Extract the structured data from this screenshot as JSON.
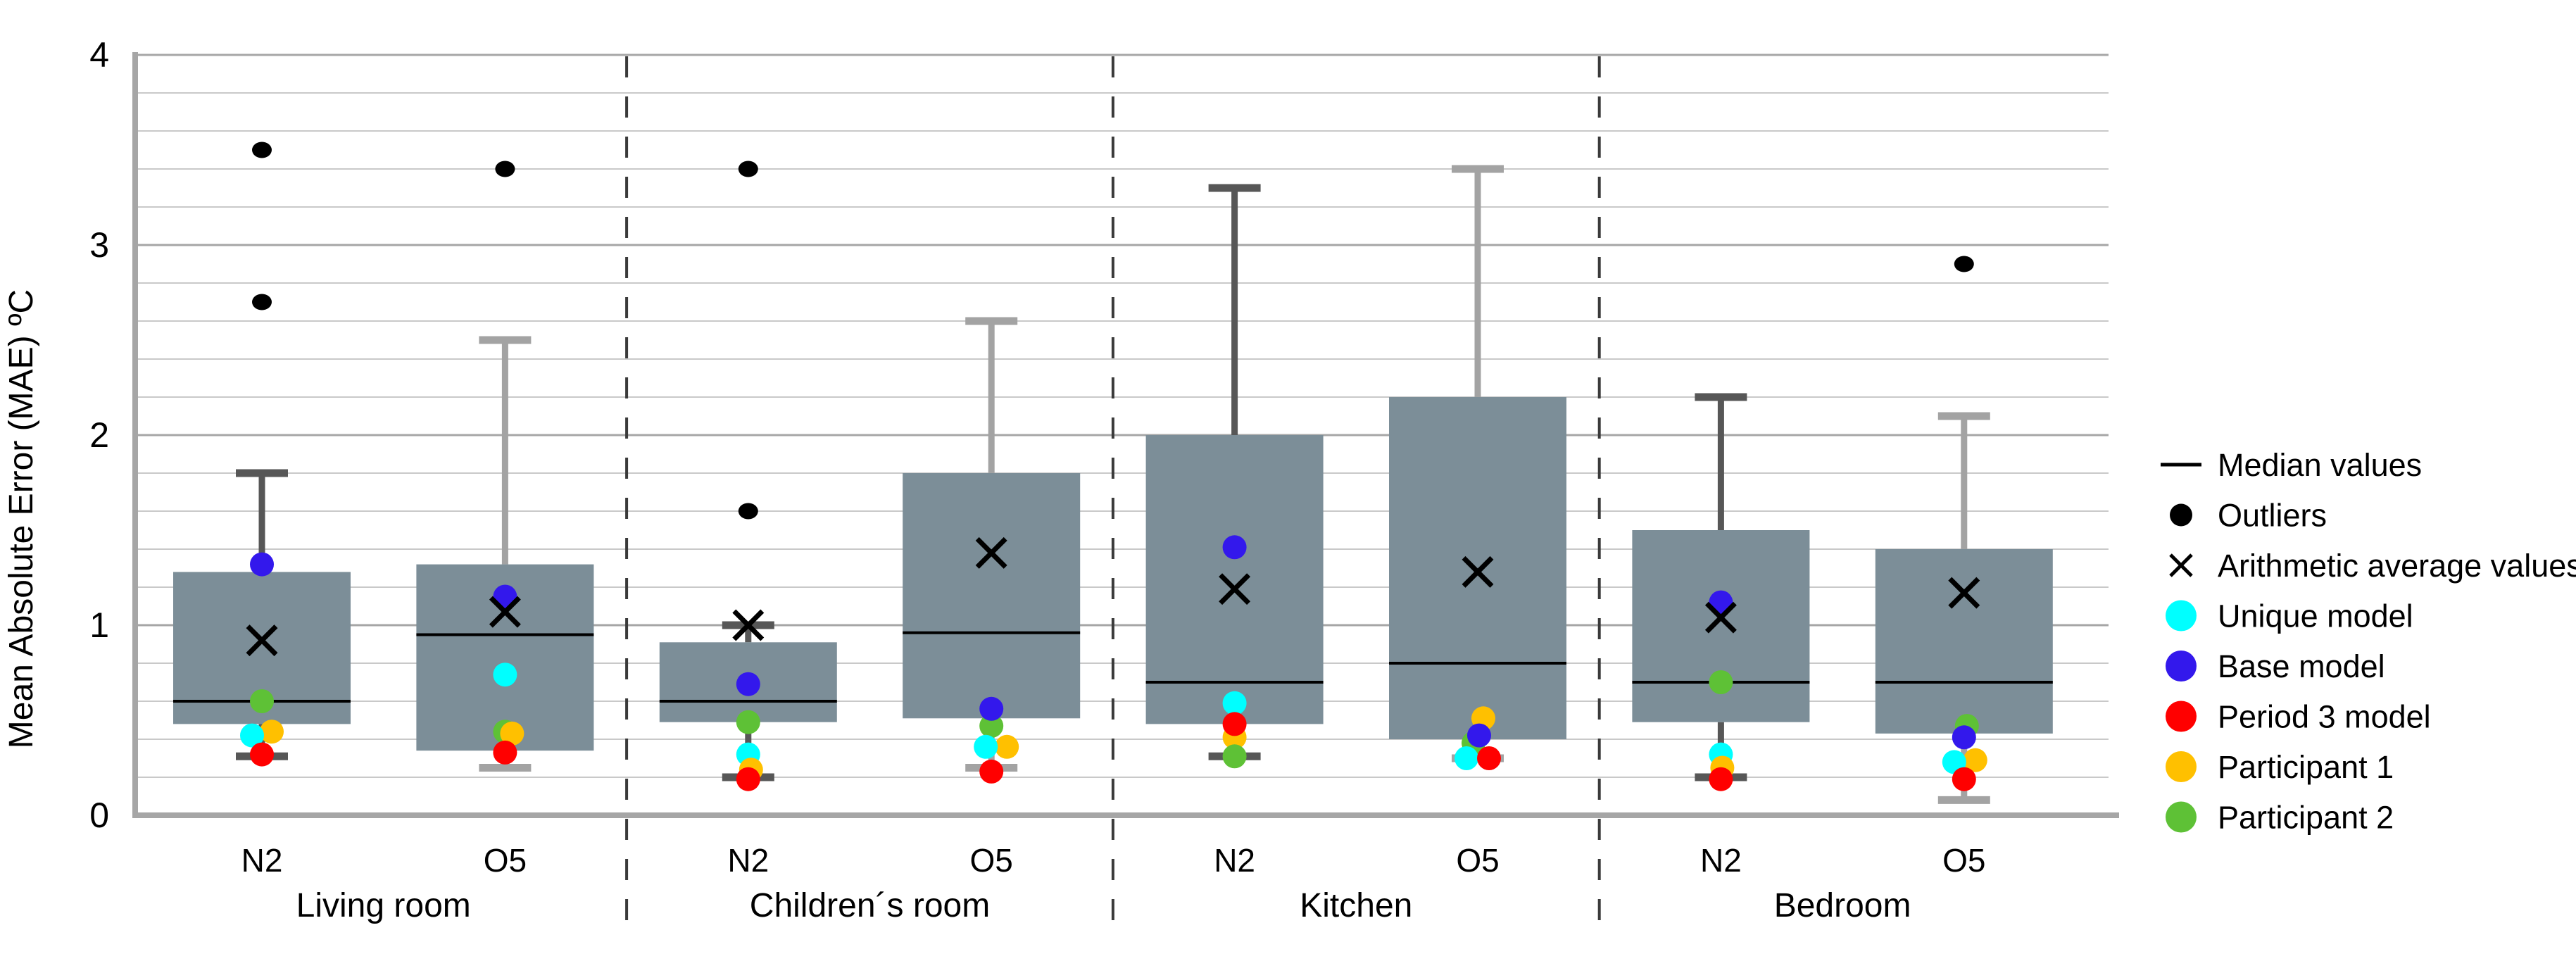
{
  "chart_data": {
    "type": "box",
    "ylabel": "Mean Absolute Error (MAE) ºC",
    "ylim": [
      0,
      4
    ],
    "ytick_labels": [
      "0",
      "1",
      "2",
      "3",
      "4"
    ],
    "grid_minor_step": 0.2,
    "grid_major_step": 1.0,
    "legend_position": "right",
    "colors": {
      "box_fill": "#7C8E98",
      "whisker_dark": "#575757",
      "whisker_light": "#A3A3A3",
      "median": "#000000",
      "mean_marker": "#000000",
      "outlier": "#000000",
      "grid_minor": "#C9C9C9",
      "grid_major": "#A6A6A6",
      "axis": "#A6A6A6",
      "separator": "#3A3A3A",
      "series": {
        "unique": "#00FFFF",
        "base": "#3318EC",
        "period3": "#FF0000",
        "participant1": "#FFC000",
        "participant2": "#5EC136"
      }
    },
    "groups": [
      {
        "room": "Living room",
        "boxes": [
          {
            "label": "N2",
            "whisker_shade": "dark",
            "q1": 0.48,
            "median": 0.6,
            "q3": 1.28,
            "mean": 0.92,
            "whisker_low": 0.31,
            "whisker_high": 1.8,
            "outliers": [
              2.7,
              3.5
            ],
            "points": [
              {
                "series": "participant2",
                "value": 0.6,
                "dx": 0
              },
              {
                "series": "participant1",
                "value": 0.44,
                "dx": 14
              },
              {
                "series": "unique",
                "value": 0.42,
                "dx": -14
              },
              {
                "series": "period3",
                "value": 0.32,
                "dx": 0
              },
              {
                "series": "base",
                "value": 1.32,
                "dx": 0
              }
            ]
          },
          {
            "label": "O5",
            "whisker_shade": "light",
            "q1": 0.34,
            "median": 0.95,
            "q3": 1.32,
            "mean": 1.07,
            "whisker_low": 0.25,
            "whisker_high": 2.5,
            "outliers": [
              3.4
            ],
            "points": [
              {
                "series": "unique",
                "value": 0.74,
                "dx": 0
              },
              {
                "series": "participant2",
                "value": 0.44,
                "dx": 0
              },
              {
                "series": "participant1",
                "value": 0.43,
                "dx": 10
              },
              {
                "series": "period3",
                "value": 0.33,
                "dx": 0
              },
              {
                "series": "base",
                "value": 1.15,
                "dx": 0
              }
            ]
          }
        ]
      },
      {
        "room": "Children´s room",
        "boxes": [
          {
            "label": "N2",
            "whisker_shade": "dark",
            "q1": 0.49,
            "median": 0.6,
            "q3": 0.91,
            "mean": 1.0,
            "whisker_low": 0.2,
            "whisker_high": 1.0,
            "outliers": [
              1.6,
              3.4
            ],
            "points": [
              {
                "series": "base",
                "value": 0.69,
                "dx": 0
              },
              {
                "series": "participant2",
                "value": 0.49,
                "dx": 0
              },
              {
                "series": "unique",
                "value": 0.32,
                "dx": 0
              },
              {
                "series": "participant1",
                "value": 0.24,
                "dx": 4
              },
              {
                "series": "period3",
                "value": 0.19,
                "dx": 0
              }
            ]
          },
          {
            "label": "O5",
            "whisker_shade": "light",
            "q1": 0.51,
            "median": 0.96,
            "q3": 1.8,
            "mean": 1.38,
            "whisker_low": 0.25,
            "whisker_high": 2.6,
            "outliers": [],
            "points": [
              {
                "series": "participant2",
                "value": 0.47,
                "dx": 0
              },
              {
                "series": "base",
                "value": 0.56,
                "dx": 0
              },
              {
                "series": "participant1",
                "value": 0.36,
                "dx": 22
              },
              {
                "series": "unique",
                "value": 0.36,
                "dx": -8
              },
              {
                "series": "period3",
                "value": 0.23,
                "dx": 0
              }
            ]
          }
        ]
      },
      {
        "room": "Kitchen",
        "boxes": [
          {
            "label": "N2",
            "whisker_shade": "dark",
            "q1": 0.48,
            "median": 0.7,
            "q3": 2.0,
            "mean": 1.19,
            "whisker_low": 0.31,
            "whisker_high": 3.3,
            "outliers": [],
            "points": [
              {
                "series": "unique",
                "value": 0.59,
                "dx": 0
              },
              {
                "series": "participant1",
                "value": 0.41,
                "dx": 0
              },
              {
                "series": "period3",
                "value": 0.48,
                "dx": 0
              },
              {
                "series": "participant2",
                "value": 0.31,
                "dx": 0
              },
              {
                "series": "base",
                "value": 1.41,
                "dx": 0
              }
            ]
          },
          {
            "label": "O5",
            "whisker_shade": "light",
            "q1": 0.4,
            "median": 0.8,
            "q3": 2.2,
            "mean": 1.28,
            "whisker_low": 0.3,
            "whisker_high": 3.4,
            "outliers": [],
            "points": [
              {
                "series": "participant1",
                "value": 0.51,
                "dx": 8
              },
              {
                "series": "participant2",
                "value": 0.38,
                "dx": -6
              },
              {
                "series": "base",
                "value": 0.42,
                "dx": 2
              },
              {
                "series": "unique",
                "value": 0.3,
                "dx": -16
              },
              {
                "series": "period3",
                "value": 0.3,
                "dx": 16
              }
            ]
          }
        ]
      },
      {
        "room": "Bedroom",
        "boxes": [
          {
            "label": "N2",
            "whisker_shade": "dark",
            "q1": 0.49,
            "median": 0.7,
            "q3": 1.5,
            "mean": 1.04,
            "whisker_low": 0.2,
            "whisker_high": 2.2,
            "outliers": [],
            "points": [
              {
                "series": "participant2",
                "value": 0.7,
                "dx": 0
              },
              {
                "series": "unique",
                "value": 0.32,
                "dx": 0
              },
              {
                "series": "participant1",
                "value": 0.25,
                "dx": 2
              },
              {
                "series": "period3",
                "value": 0.19,
                "dx": 0
              },
              {
                "series": "base",
                "value": 1.12,
                "dx": 0
              }
            ]
          },
          {
            "label": "O5",
            "whisker_shade": "light",
            "q1": 0.43,
            "median": 0.7,
            "q3": 1.4,
            "mean": 1.17,
            "whisker_low": 0.08,
            "whisker_high": 2.1,
            "outliers": [
              2.9
            ],
            "points": [
              {
                "series": "participant2",
                "value": 0.47,
                "dx": 4
              },
              {
                "series": "base",
                "value": 0.41,
                "dx": 0
              },
              {
                "series": "participant1",
                "value": 0.29,
                "dx": 16
              },
              {
                "series": "unique",
                "value": 0.28,
                "dx": -14
              },
              {
                "series": "period3",
                "value": 0.19,
                "dx": 0
              }
            ]
          }
        ]
      }
    ],
    "legend": [
      {
        "label": "Median values",
        "marker": "line",
        "color": "#000000"
      },
      {
        "label": "Outliers",
        "marker": "dot",
        "color": "#000000"
      },
      {
        "label": "Arithmetic average values",
        "marker": "x",
        "color": "#000000"
      },
      {
        "label": "Unique model",
        "marker": "dot",
        "color": "#00FFFF"
      },
      {
        "label": "Base model",
        "marker": "dot",
        "color": "#3318EC"
      },
      {
        "label": "Period 3 model",
        "marker": "dot",
        "color": "#FF0000"
      },
      {
        "label": "Participant 1",
        "marker": "dot",
        "color": "#FFC000"
      },
      {
        "label": "Participant 2",
        "marker": "dot",
        "color": "#5EC136"
      }
    ]
  }
}
